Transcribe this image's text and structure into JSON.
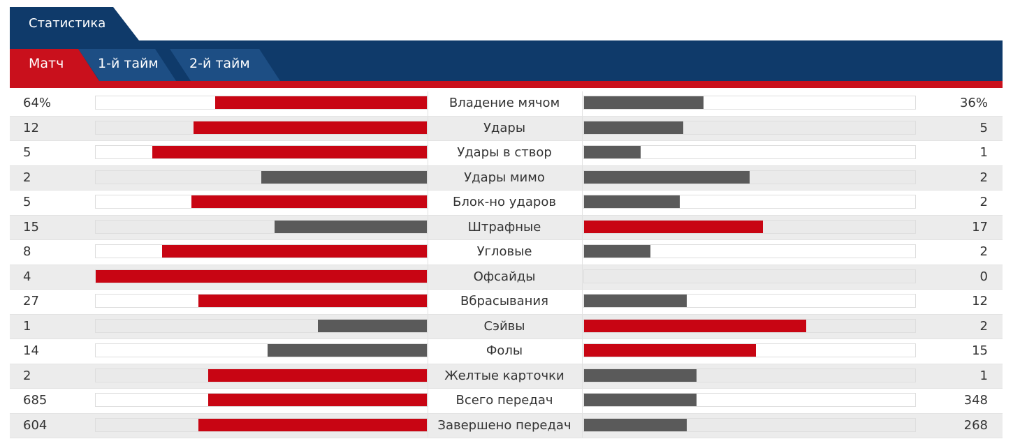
{
  "header": {
    "title_tab": "Статистика",
    "period_tabs": [
      {
        "label": "Матч",
        "active": true
      },
      {
        "label": "1-й тайм",
        "active": false
      },
      {
        "label": "2-й тайм",
        "active": false
      }
    ]
  },
  "colors": {
    "nav": "#0f3a6a",
    "accent": "#c80513",
    "leading_bar": "#c80513",
    "trailing_bar": "#5a5a5a"
  },
  "stats": [
    {
      "name": "Владение мячом",
      "left": "64%",
      "right": "36%",
      "left_share": 0.64,
      "right_share": 0.36,
      "left_red": true,
      "right_red": false
    },
    {
      "name": "Удары",
      "left": "12",
      "right": "5",
      "left_share": 0.705,
      "right_share": 0.3,
      "left_red": true,
      "right_red": false
    },
    {
      "name": "Удары в створ",
      "left": "5",
      "right": "1",
      "left_share": 0.83,
      "right_share": 0.17,
      "left_red": true,
      "right_red": false
    },
    {
      "name": "Удары мимо",
      "left": "2",
      "right": "2",
      "left_share": 0.5,
      "right_share": 0.5,
      "left_red": false,
      "right_red": false
    },
    {
      "name": "Блок-но ударов",
      "left": "5",
      "right": "2",
      "left_share": 0.71,
      "right_share": 0.29,
      "left_red": true,
      "right_red": false
    },
    {
      "name": "Штрафные",
      "left": "15",
      "right": "17",
      "left_share": 0.46,
      "right_share": 0.54,
      "left_red": false,
      "right_red": true
    },
    {
      "name": "Угловые",
      "left": "8",
      "right": "2",
      "left_share": 0.8,
      "right_share": 0.2,
      "left_red": true,
      "right_red": false
    },
    {
      "name": "Офсайды",
      "left": "4",
      "right": "0",
      "left_share": 1.0,
      "right_share": 0.0,
      "left_red": true,
      "right_red": false
    },
    {
      "name": "Вбрасывания",
      "left": "27",
      "right": "12",
      "left_share": 0.69,
      "right_share": 0.31,
      "left_red": true,
      "right_red": false
    },
    {
      "name": "Сэйвы",
      "left": "1",
      "right": "2",
      "left_share": 0.33,
      "right_share": 0.67,
      "left_red": false,
      "right_red": true
    },
    {
      "name": "Фолы",
      "left": "14",
      "right": "15",
      "left_share": 0.48,
      "right_share": 0.52,
      "left_red": false,
      "right_red": true
    },
    {
      "name": "Желтые карточки",
      "left": "2",
      "right": "1",
      "left_share": 0.66,
      "right_share": 0.34,
      "left_red": true,
      "right_red": false
    },
    {
      "name": "Всего передач",
      "left": "685",
      "right": "348",
      "left_share": 0.66,
      "right_share": 0.34,
      "left_red": true,
      "right_red": false
    },
    {
      "name": "Завершено передач",
      "left": "604",
      "right": "268",
      "left_share": 0.69,
      "right_share": 0.31,
      "left_red": true,
      "right_red": false
    }
  ]
}
